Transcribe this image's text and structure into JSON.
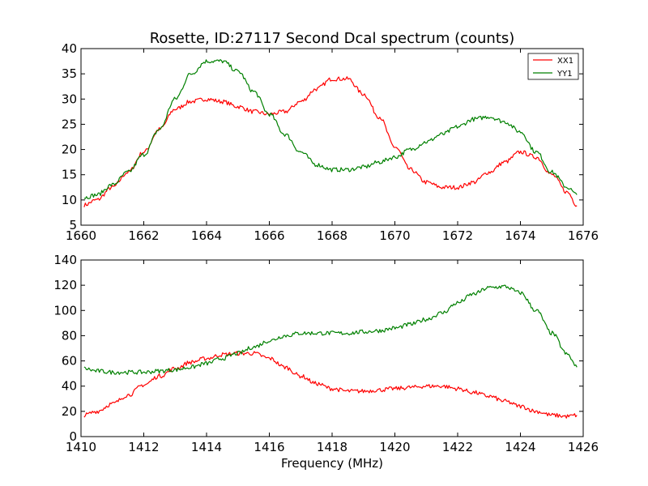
{
  "chart_data": [
    {
      "type": "line",
      "title": "Rosette, ID:27117 Second Dcal spectrum (counts)",
      "xlabel": "",
      "ylabel": "",
      "xlim": [
        1660,
        1676
      ],
      "ylim": [
        5,
        40
      ],
      "xticks": [
        "1660",
        "1662",
        "1664",
        "1666",
        "1668",
        "1670",
        "1672",
        "1674",
        "1676"
      ],
      "yticks": [
        "5",
        "10",
        "15",
        "20",
        "25",
        "30",
        "35",
        "40"
      ],
      "legend": {
        "placement": "top-right",
        "entries": [
          "XX1",
          "YY1"
        ]
      },
      "grid": false,
      "series": [
        {
          "name": "XX1",
          "color": "#ff0000",
          "x": [
            1660.1,
            1660.5,
            1661.0,
            1661.5,
            1662.0,
            1662.5,
            1663.0,
            1663.5,
            1664.0,
            1664.5,
            1665.0,
            1665.5,
            1666.0,
            1666.5,
            1667.0,
            1667.5,
            1668.0,
            1668.5,
            1669.0,
            1669.5,
            1670.0,
            1670.5,
            1671.0,
            1671.5,
            1672.0,
            1672.5,
            1673.0,
            1673.5,
            1674.0,
            1674.5,
            1675.0,
            1675.5,
            1675.8
          ],
          "values": [
            9.0,
            10.0,
            12.5,
            15.5,
            19.5,
            24.0,
            28.0,
            29.5,
            30.0,
            29.5,
            28.5,
            27.5,
            27.0,
            27.5,
            29.5,
            32.0,
            34.0,
            34.0,
            31.0,
            26.5,
            20.5,
            16.0,
            13.5,
            12.5,
            12.5,
            13.5,
            15.5,
            17.5,
            19.5,
            18.5,
            15.0,
            11.5,
            9.0
          ]
        },
        {
          "name": "YY1",
          "color": "#008000",
          "x": [
            1660.1,
            1660.5,
            1661.0,
            1661.5,
            1662.0,
            1662.5,
            1663.0,
            1663.5,
            1664.0,
            1664.5,
            1665.0,
            1665.5,
            1666.0,
            1666.5,
            1667.0,
            1667.5,
            1668.0,
            1668.5,
            1669.0,
            1669.5,
            1670.0,
            1670.5,
            1671.0,
            1671.5,
            1672.0,
            1672.5,
            1673.0,
            1673.5,
            1674.0,
            1674.5,
            1675.0,
            1675.5,
            1675.8
          ],
          "values": [
            10.5,
            11.0,
            13.0,
            15.5,
            19.0,
            24.0,
            30.0,
            35.0,
            37.5,
            37.5,
            35.5,
            31.5,
            27.0,
            23.0,
            19.5,
            17.0,
            16.0,
            16.0,
            16.5,
            17.5,
            18.5,
            20.0,
            21.5,
            23.0,
            24.5,
            26.0,
            26.5,
            25.5,
            23.5,
            19.5,
            15.5,
            12.5,
            11.0
          ]
        }
      ]
    },
    {
      "type": "line",
      "title": "",
      "xlabel": "Frequency (MHz)",
      "ylabel": "",
      "xlim": [
        1410,
        1426
      ],
      "ylim": [
        0,
        140
      ],
      "xticks": [
        "1410",
        "1412",
        "1414",
        "1416",
        "1418",
        "1420",
        "1422",
        "1424",
        "1426"
      ],
      "yticks": [
        "0",
        "20",
        "40",
        "60",
        "80",
        "100",
        "120",
        "140"
      ],
      "grid": false,
      "series": [
        {
          "color": "#ff0000",
          "x": [
            1410.1,
            1410.5,
            1411.0,
            1411.5,
            1412.0,
            1412.5,
            1413.0,
            1413.5,
            1414.0,
            1414.5,
            1415.0,
            1415.5,
            1416.0,
            1416.5,
            1417.0,
            1417.5,
            1418.0,
            1418.5,
            1419.0,
            1419.5,
            1420.0,
            1420.5,
            1421.0,
            1421.5,
            1422.0,
            1422.5,
            1423.0,
            1423.5,
            1424.0,
            1424.5,
            1425.0,
            1425.5,
            1425.8
          ],
          "values": [
            17,
            20,
            26,
            33,
            41,
            48,
            54,
            59,
            62,
            65,
            66,
            66,
            62,
            55,
            48,
            42,
            38,
            36,
            36,
            37,
            38,
            39,
            40,
            40,
            38,
            35,
            32,
            28,
            24,
            20,
            17,
            16,
            17
          ]
        },
        {
          "color": "#008000",
          "x": [
            1410.1,
            1410.5,
            1411.0,
            1411.5,
            1412.0,
            1412.5,
            1413.0,
            1413.5,
            1414.0,
            1414.5,
            1415.0,
            1415.5,
            1416.0,
            1416.5,
            1417.0,
            1417.5,
            1418.0,
            1418.5,
            1419.0,
            1419.5,
            1420.0,
            1420.5,
            1421.0,
            1421.5,
            1422.0,
            1422.5,
            1423.0,
            1423.5,
            1424.0,
            1424.5,
            1425.0,
            1425.5,
            1425.8
          ],
          "values": [
            54,
            52,
            51,
            51,
            51,
            52,
            53,
            55,
            58,
            62,
            66,
            71,
            76,
            80,
            82,
            82,
            82,
            82,
            83,
            84,
            86,
            89,
            93,
            98,
            106,
            113,
            118,
            119,
            114,
            100,
            82,
            65,
            55
          ]
        }
      ]
    }
  ]
}
